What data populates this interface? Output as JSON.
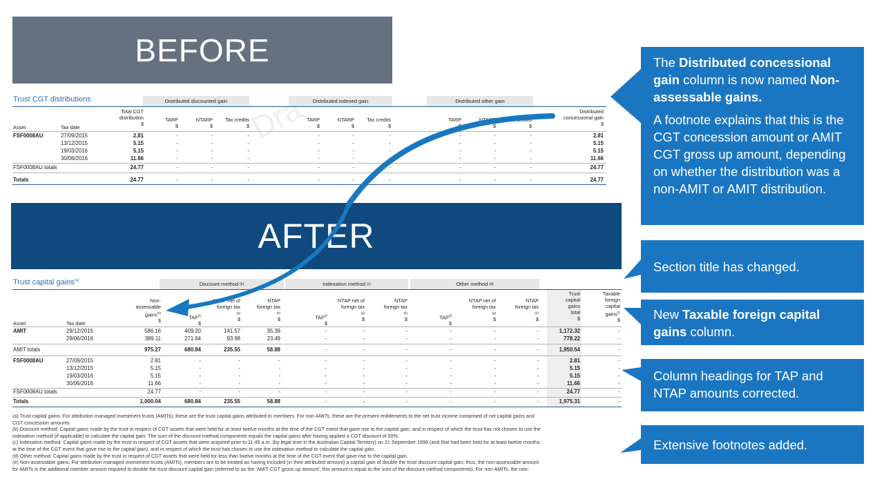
{
  "before_label": "BEFORE",
  "after_label": "AFTER",
  "watermark": "Dra",
  "before_table": {
    "title": "Trust CGT distributions",
    "groups": [
      "Distributed discounted gain",
      "Distributed indexed gain",
      "Distributed other gain"
    ],
    "headers": {
      "asset": "Asset",
      "tax_date": "Tax date",
      "total_line1": "Total CGT",
      "total_line2": "distribution",
      "tarp": "TARP",
      "ntarp": "NTARP",
      "tax_credits": "Tax credits",
      "dist_line1": "Distributed",
      "dist_line2": "concessional gain",
      "currency": "$"
    },
    "rows": [
      {
        "asset": "FSF0008AU",
        "date": "27/09/2015",
        "total": "2.81",
        "dist": "2.81"
      },
      {
        "asset": "",
        "date": "13/12/2015",
        "total": "5.15",
        "dist": "5.15"
      },
      {
        "asset": "",
        "date": "19/03/2016",
        "total": "5.15",
        "dist": "5.15"
      },
      {
        "asset": "",
        "date": "30/06/2016",
        "total": "11.66",
        "dist": "11.66"
      }
    ],
    "subtotal": {
      "label": "FSF0008AU totals",
      "total": "24.77",
      "dist": "24.77"
    },
    "totals": {
      "label": "Totals",
      "total": "24.77",
      "dist": "24.77"
    },
    "dash": "-"
  },
  "after_table": {
    "title": "Trust capital gains",
    "title_sup": "(a)",
    "groups": [
      {
        "label": "Discount method",
        "sup": "(b)"
      },
      {
        "label": "Indexation method",
        "sup": "(c)"
      },
      {
        "label": "Other method",
        "sup": "(d)"
      }
    ],
    "headers": {
      "asset": "Asset",
      "tax_date": "Tax date",
      "nonassess_l1": "Non-",
      "nonassess_l2": "assessable",
      "nonassess_l3": "gains",
      "nonassess_sup": "(e)",
      "tap": "TAP",
      "tap_sup": "(f)",
      "ntap_net_l1": "NTAP net of",
      "ntap_net_l2": "foreign tax",
      "ntap_net_sup": "(g)",
      "ntap_l1": "NTAP",
      "ntap_l2": "foreign tax",
      "ntap_sup": "(h)",
      "trust_l1": "Trust",
      "trust_l2": "capital",
      "trust_l3": "gains",
      "trust_l4": "total",
      "tfcg_l1": "Taxable",
      "tfcg_l2": "foreign",
      "tfcg_l3": "capital",
      "tfcg_l4": "gains",
      "tfcg_sup": "(i)",
      "currency": "$"
    },
    "rows": [
      {
        "asset": "AMIT",
        "date": "29/12/2015",
        "nonassess": "586.16",
        "tap": "409.20",
        "ntapnet": "141.57",
        "ntap": "35.39",
        "total": "1,172.32",
        "tfcg": "-"
      },
      {
        "asset": "",
        "date": "29/06/2016",
        "nonassess": "389.11",
        "tap": "271.64",
        "ntapnet": "93.98",
        "ntap": "23.49",
        "total": "778.22",
        "tfcg": "-"
      },
      {
        "asset": "AMIT  totals",
        "date": "",
        "nonassess": "975.27",
        "tap": "680.84",
        "ntapnet": "235.55",
        "ntap": "58.88",
        "total": "1,950.54",
        "tfcg": "-"
      },
      {
        "asset": "FSF0008AU",
        "date": "27/09/2015",
        "nonassess": "2.81",
        "tap": "-",
        "ntapnet": "-",
        "ntap": "-",
        "total": "2.81",
        "tfcg": "-"
      },
      {
        "asset": "",
        "date": "13/12/2015",
        "nonassess": "5.15",
        "tap": "-",
        "ntapnet": "-",
        "ntap": "-",
        "total": "5.15",
        "tfcg": "-"
      },
      {
        "asset": "",
        "date": "19/03/2016",
        "nonassess": "5.15",
        "tap": "-",
        "ntapnet": "-",
        "ntap": "-",
        "total": "5.15",
        "tfcg": "-"
      },
      {
        "asset": "",
        "date": "30/06/2016",
        "nonassess": "11.66",
        "tap": "-",
        "ntapnet": "-",
        "ntap": "-",
        "total": "11.66",
        "tfcg": "-"
      },
      {
        "asset": "FSF0008AU  totals",
        "date": "",
        "nonassess": "24.77",
        "tap": "-",
        "ntapnet": "-",
        "ntap": "-",
        "total": "24.77",
        "tfcg": "-"
      },
      {
        "asset": "Totals",
        "date": "",
        "nonassess": "1,000.04",
        "tap": "680.84",
        "ntapnet": "235.55",
        "ntap": "58.88",
        "total": "1,975.31",
        "tfcg": "-"
      }
    ],
    "dash": "-"
  },
  "footnotes": [
    "(a) Trust capital gains: For attribution managed investment trusts (AMITs), these are the trust capital gains attributed to members. For non-AMITs, these are the present entitlements to the net trust income comprised of net capital gains and",
    "CGT concession amounts.",
    "(b) Discount method: Capital gains made by the trust in respect of CGT assets that were held for at least twelve months at the time of the CGT event that gave rise to the capital gain, and in respect of which the trust has not chosen to use the",
    "indexation method (if applicable) to calculate the capital gain. The sum of the discount method components equals the capital gains after having applied a CGT discount of 50%.",
    "(c) Indexation method: Capital gains made by the trust in respect of CGT assets that were acquired prior to 11:45 a.m. (by legal time in the Australian Capital Territory) on 21 September 1999 (and that had been held for at least twelve months",
    "at the time of the CGT event that gave rise to the capital gain), and in respect of which the trust has chosen to use the indexation method to calculate the capital gain.",
    "(d) Other method: Capital gains made by the trust in respect of CGT assets that were held for less than twelve months at the time of the CGT event that gave rise to the capital gain.",
    "(e) Non-assessable gains: For attribution managed investment trusts (AMITs), members are to be treated as having included (in their attributed amount) a capital gain of double the trust discount capital gain; thus, the non-assessable amount",
    "for AMITs is the additional member amount required to double the trust discount capital gain (referred to as the 'AMIT CGT gross up amount', this amount is equal to the sum of the discount method components). For non-AMITs, the non-"
  ],
  "callouts": {
    "c1": {
      "p1_pre": "The ",
      "p1_bold1": "Distributed concessional gain",
      "p1_mid": " column is now named ",
      "p1_bold2": "Non-assessable gains.",
      "p2": "A footnote explains that this is the CGT  concession amount or AMIT CGT gross up amount, depending on whether the distribution was a non-AMIT or AMIT distribution."
    },
    "c2": "Section title has changed.",
    "c3": {
      "pre": "New ",
      "bold": "Taxable foreign capital gains",
      "post": " column."
    },
    "c4": "Column headings for TAP and NTAP amounts corrected.",
    "c5": "Extensive footnotes added."
  },
  "colors": {
    "callout": "#1b76c1",
    "before_band": "#66717f",
    "after_band": "#10497d",
    "arrow": "#1878c0",
    "title_blue": "#2a6db2"
  }
}
